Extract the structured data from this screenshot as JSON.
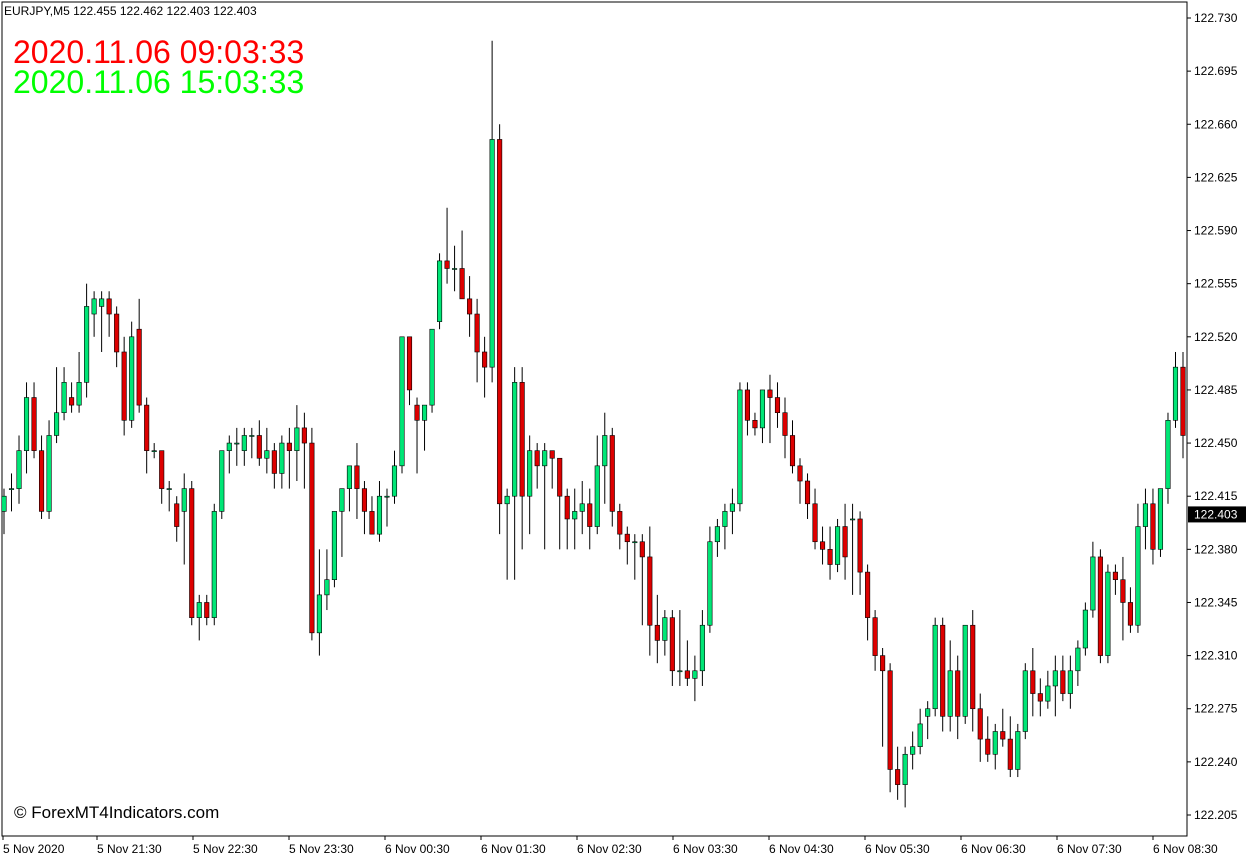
{
  "header": {
    "symbol_info": "EURJPY,M5  122.455 122.462 122.403 122.403"
  },
  "overlay": {
    "time1": "2020.11.06 09:03:33",
    "time2": "2020.11.06 15:03:33",
    "time1_color": "#ff0000",
    "time2_color": "#00ff00"
  },
  "watermark": "© ForexMT4Indicators.com",
  "colors": {
    "bull": "#00e676",
    "bear": "#dd0000",
    "background": "#ffffff",
    "axis": "#000000",
    "current_price_bg": "#000000",
    "current_price_text": "#ffffff"
  },
  "chart_data": {
    "type": "candlestick",
    "symbol": "EURJPY",
    "timeframe": "M5",
    "ohlc_header": {
      "open": 122.455,
      "high": 122.462,
      "low": 122.403,
      "close": 122.403
    },
    "current_price": 122.403,
    "y_ticks": [
      122.73,
      122.695,
      122.66,
      122.625,
      122.59,
      122.555,
      122.52,
      122.485,
      122.45,
      122.415,
      122.38,
      122.345,
      122.31,
      122.275,
      122.24,
      122.205
    ],
    "ylim": [
      122.2,
      122.735
    ],
    "x_ticks": [
      "5 Nov 2020",
      "5 Nov 21:30",
      "5 Nov 22:30",
      "5 Nov 23:30",
      "6 Nov 00:30",
      "6 Nov 01:30",
      "6 Nov 02:30",
      "6 Nov 03:30",
      "6 Nov 04:30",
      "6 Nov 05:30",
      "6 Nov 06:30",
      "6 Nov 07:30",
      "6 Nov 08:30"
    ],
    "candles": [
      [
        122.405,
        122.42,
        122.39,
        122.415
      ],
      [
        122.42,
        122.43,
        122.405,
        122.42
      ],
      [
        122.42,
        122.455,
        122.41,
        122.445
      ],
      [
        122.445,
        122.49,
        122.43,
        122.48
      ],
      [
        122.48,
        122.49,
        122.44,
        122.445
      ],
      [
        122.445,
        122.455,
        122.4,
        122.405
      ],
      [
        122.405,
        122.465,
        122.4,
        122.455
      ],
      [
        122.455,
        122.5,
        122.45,
        122.47
      ],
      [
        122.47,
        122.5,
        122.465,
        122.49
      ],
      [
        122.48,
        122.49,
        122.47,
        122.475
      ],
      [
        122.475,
        122.51,
        122.47,
        122.49
      ],
      [
        122.49,
        122.555,
        122.48,
        122.54
      ],
      [
        122.535,
        122.55,
        122.52,
        122.545
      ],
      [
        122.54,
        122.55,
        122.51,
        122.545
      ],
      [
        122.545,
        122.55,
        122.52,
        122.535
      ],
      [
        122.535,
        122.54,
        122.5,
        122.51
      ],
      [
        122.51,
        122.52,
        122.455,
        122.465
      ],
      [
        122.465,
        122.53,
        122.46,
        122.52
      ],
      [
        122.525,
        122.545,
        122.47,
        122.475
      ],
      [
        122.475,
        122.48,
        122.43,
        122.445
      ],
      [
        122.445,
        122.45,
        122.44,
        122.445
      ],
      [
        122.445,
        122.44,
        122.41,
        122.42
      ],
      [
        122.42,
        122.425,
        122.405,
        122.42
      ],
      [
        122.41,
        122.415,
        122.385,
        122.395
      ],
      [
        122.405,
        122.43,
        122.37,
        122.42
      ],
      [
        122.42,
        122.425,
        122.33,
        122.335
      ],
      [
        122.335,
        122.35,
        122.32,
        122.345
      ],
      [
        122.345,
        122.35,
        122.33,
        122.335
      ],
      [
        122.335,
        122.41,
        122.33,
        122.405
      ],
      [
        122.405,
        122.445,
        122.4,
        122.445
      ],
      [
        122.445,
        122.455,
        122.43,
        122.45
      ],
      [
        122.45,
        122.46,
        122.435,
        122.45
      ],
      [
        122.445,
        122.46,
        122.435,
        122.455
      ],
      [
        122.455,
        122.46,
        122.44,
        122.455
      ],
      [
        122.455,
        122.465,
        122.435,
        122.44
      ],
      [
        122.44,
        122.46,
        122.43,
        122.445
      ],
      [
        122.445,
        122.45,
        122.42,
        122.43
      ],
      [
        122.43,
        122.455,
        122.42,
        122.45
      ],
      [
        122.45,
        122.46,
        122.42,
        122.445
      ],
      [
        122.445,
        122.475,
        122.425,
        122.46
      ],
      [
        122.46,
        122.47,
        122.42,
        122.45
      ],
      [
        122.45,
        122.46,
        122.32,
        122.325
      ],
      [
        122.325,
        122.38,
        122.31,
        122.35
      ],
      [
        122.35,
        122.38,
        122.34,
        122.36
      ],
      [
        122.36,
        122.405,
        122.355,
        122.405
      ],
      [
        122.405,
        122.42,
        122.375,
        122.42
      ],
      [
        122.42,
        122.435,
        122.405,
        122.435
      ],
      [
        122.435,
        122.45,
        122.4,
        122.42
      ],
      [
        122.42,
        122.425,
        122.39,
        122.405
      ],
      [
        122.405,
        122.415,
        122.39,
        122.39
      ],
      [
        122.39,
        122.425,
        122.385,
        122.415
      ],
      [
        122.415,
        122.42,
        122.395,
        122.415
      ],
      [
        122.415,
        122.445,
        122.41,
        122.435
      ],
      [
        122.435,
        122.52,
        122.43,
        122.52
      ],
      [
        122.52,
        122.52,
        122.475,
        122.485
      ],
      [
        122.475,
        122.48,
        122.43,
        122.465
      ],
      [
        122.465,
        122.475,
        122.445,
        122.475
      ],
      [
        122.475,
        122.525,
        122.47,
        122.525
      ],
      [
        122.53,
        122.575,
        122.525,
        122.57
      ],
      [
        122.57,
        122.605,
        122.555,
        122.565
      ],
      [
        122.565,
        122.58,
        122.55,
        122.565
      ],
      [
        122.565,
        122.59,
        122.545,
        122.545
      ],
      [
        122.545,
        122.56,
        122.52,
        122.535
      ],
      [
        122.535,
        122.545,
        122.49,
        122.51
      ],
      [
        122.51,
        122.52,
        122.48,
        122.5
      ],
      [
        122.5,
        122.715,
        122.49,
        122.65
      ],
      [
        122.65,
        122.66,
        122.39,
        122.41
      ],
      [
        122.41,
        122.42,
        122.36,
        122.415
      ],
      [
        122.415,
        122.5,
        122.36,
        122.49
      ],
      [
        122.49,
        122.5,
        122.38,
        122.415
      ],
      [
        122.415,
        122.455,
        122.39,
        122.445
      ],
      [
        122.445,
        122.45,
        122.42,
        122.435
      ],
      [
        122.435,
        122.45,
        122.38,
        122.445
      ],
      [
        122.445,
        122.445,
        122.42,
        122.44
      ],
      [
        122.44,
        122.44,
        122.38,
        122.415
      ],
      [
        122.415,
        122.42,
        122.38,
        122.4
      ],
      [
        122.4,
        122.42,
        122.38,
        122.405
      ],
      [
        122.405,
        122.425,
        122.39,
        122.41
      ],
      [
        122.41,
        122.42,
        122.38,
        122.395
      ],
      [
        122.395,
        122.455,
        122.39,
        122.435
      ],
      [
        122.435,
        122.47,
        122.41,
        122.455
      ],
      [
        122.455,
        122.46,
        122.395,
        122.405
      ],
      [
        122.405,
        122.41,
        122.38,
        122.39
      ],
      [
        122.39,
        122.395,
        122.37,
        122.385
      ],
      [
        122.385,
        122.39,
        122.36,
        122.385
      ],
      [
        122.385,
        122.39,
        122.33,
        122.375
      ],
      [
        122.375,
        122.395,
        122.31,
        122.33
      ],
      [
        122.33,
        122.35,
        122.305,
        122.32
      ],
      [
        122.32,
        122.34,
        122.31,
        122.335
      ],
      [
        122.335,
        122.34,
        122.29,
        122.3
      ],
      [
        122.3,
        122.34,
        122.29,
        122.3
      ],
      [
        122.3,
        122.32,
        122.29,
        122.295
      ],
      [
        122.295,
        122.31,
        122.28,
        122.3
      ],
      [
        122.3,
        122.34,
        122.29,
        122.33
      ],
      [
        122.33,
        122.395,
        122.325,
        122.385
      ],
      [
        122.385,
        122.4,
        122.375,
        122.395
      ],
      [
        122.395,
        122.41,
        122.38,
        122.405
      ],
      [
        122.405,
        122.42,
        122.39,
        122.41
      ],
      [
        122.41,
        122.49,
        122.405,
        122.485
      ],
      [
        122.485,
        122.49,
        122.455,
        122.465
      ],
      [
        122.465,
        122.47,
        122.455,
        122.46
      ],
      [
        122.46,
        122.485,
        122.45,
        122.485
      ],
      [
        122.485,
        122.495,
        122.45,
        122.48
      ],
      [
        122.48,
        122.49,
        122.46,
        122.47
      ],
      [
        122.47,
        122.48,
        122.44,
        122.455
      ],
      [
        122.455,
        122.465,
        122.43,
        122.435
      ],
      [
        122.435,
        122.44,
        122.41,
        122.425
      ],
      [
        122.425,
        122.43,
        122.4,
        122.41
      ],
      [
        122.41,
        122.42,
        122.38,
        122.385
      ],
      [
        122.385,
        122.395,
        122.37,
        122.38
      ],
      [
        122.38,
        122.395,
        122.36,
        122.37
      ],
      [
        122.37,
        122.4,
        122.365,
        122.395
      ],
      [
        122.395,
        122.41,
        122.36,
        122.375
      ],
      [
        122.4,
        122.41,
        122.35,
        122.4
      ],
      [
        122.4,
        122.405,
        122.35,
        122.365
      ],
      [
        122.365,
        122.37,
        122.32,
        122.335
      ],
      [
        122.335,
        122.34,
        122.3,
        122.31
      ],
      [
        122.31,
        122.315,
        122.25,
        122.3
      ],
      [
        122.3,
        122.305,
        122.22,
        122.235
      ],
      [
        122.235,
        122.25,
        122.215,
        122.225
      ],
      [
        122.225,
        122.25,
        122.21,
        122.245
      ],
      [
        122.245,
        122.26,
        122.235,
        122.25
      ],
      [
        122.25,
        122.275,
        122.245,
        122.265
      ],
      [
        122.27,
        122.28,
        122.255,
        122.275
      ],
      [
        122.275,
        122.335,
        122.27,
        122.33
      ],
      [
        122.33,
        122.335,
        122.26,
        122.27
      ],
      [
        122.27,
        122.32,
        122.26,
        122.3
      ],
      [
        122.3,
        122.31,
        122.255,
        122.27
      ],
      [
        122.27,
        122.33,
        122.265,
        122.33
      ],
      [
        122.33,
        122.34,
        122.26,
        122.275
      ],
      [
        122.275,
        122.285,
        122.24,
        122.255
      ],
      [
        122.255,
        122.27,
        122.24,
        122.245
      ],
      [
        122.245,
        122.265,
        122.235,
        122.26
      ],
      [
        122.26,
        122.275,
        122.25,
        122.255
      ],
      [
        122.255,
        122.27,
        122.23,
        122.235
      ],
      [
        122.235,
        122.265,
        122.23,
        122.26
      ],
      [
        122.26,
        122.305,
        122.255,
        122.3
      ],
      [
        122.3,
        122.315,
        122.27,
        122.285
      ],
      [
        122.285,
        122.295,
        122.27,
        122.28
      ],
      [
        122.28,
        122.3,
        122.275,
        122.29
      ],
      [
        122.29,
        122.31,
        122.27,
        122.3
      ],
      [
        122.3,
        122.31,
        122.28,
        122.285
      ],
      [
        122.285,
        122.31,
        122.275,
        122.3
      ],
      [
        122.3,
        122.32,
        122.29,
        122.315
      ],
      [
        122.315,
        122.345,
        122.31,
        122.34
      ],
      [
        122.34,
        122.385,
        122.335,
        122.375
      ],
      [
        122.375,
        122.38,
        122.305,
        122.31
      ],
      [
        122.31,
        122.37,
        122.305,
        122.365
      ],
      [
        122.365,
        122.37,
        122.35,
        122.36
      ],
      [
        122.36,
        122.375,
        122.32,
        122.345
      ],
      [
        122.345,
        122.355,
        122.325,
        122.33
      ],
      [
        122.33,
        122.41,
        122.325,
        122.395
      ],
      [
        122.395,
        122.42,
        122.38,
        122.41
      ],
      [
        122.41,
        122.42,
        122.37,
        122.38
      ],
      [
        122.38,
        122.42,
        122.375,
        122.42
      ],
      [
        122.42,
        122.47,
        122.41,
        122.465
      ],
      [
        122.465,
        122.51,
        122.46,
        122.5
      ],
      [
        122.5,
        122.51,
        122.44,
        122.455
      ]
    ]
  }
}
